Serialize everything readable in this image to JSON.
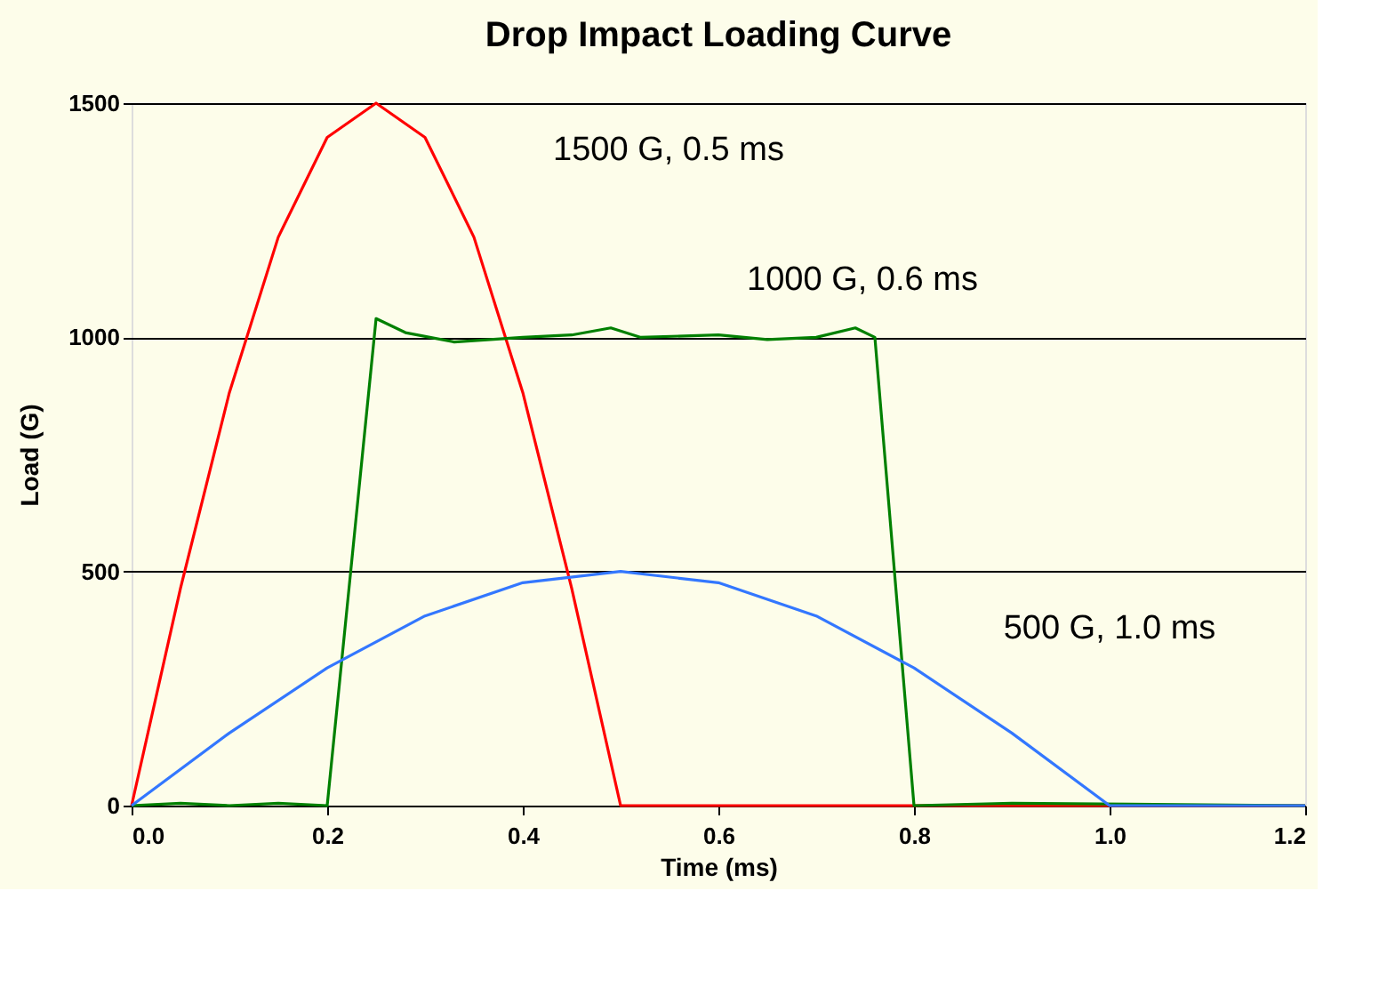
{
  "chart_data": {
    "type": "line",
    "title": "Drop Impact Loading Curve",
    "xlabel": "Time (ms)",
    "ylabel": "Load (G)",
    "xlim": [
      0,
      1.2
    ],
    "ylim": [
      0,
      1500
    ],
    "xticks": [
      {
        "value": 0,
        "label": "0.0"
      },
      {
        "value": 0.2,
        "label": "0.2"
      },
      {
        "value": 0.4,
        "label": "0.4"
      },
      {
        "value": 0.6,
        "label": "0.6"
      },
      {
        "value": 0.8,
        "label": "0.8"
      },
      {
        "value": 1.0,
        "label": "1.0"
      },
      {
        "value": 1.2,
        "label": "1.2"
      }
    ],
    "yticks": [
      0,
      500,
      1000,
      1500
    ],
    "grid": "y",
    "marker": "none",
    "line_style": "solid",
    "series": [
      {
        "color": "#ff0000",
        "x": [
          0,
          0.05,
          0.1,
          0.15,
          0.2,
          0.25,
          0.3,
          0.35,
          0.4,
          0.45,
          0.5,
          1.2
        ],
        "values": [
          0,
          464,
          882,
          1214,
          1427,
          1500,
          1427,
          1214,
          882,
          464,
          0,
          0
        ]
      },
      {
        "color": "#008000",
        "x": [
          0,
          0.05,
          0.1,
          0.15,
          0.2,
          0.25,
          0.28,
          0.33,
          0.4,
          0.45,
          0.49,
          0.52,
          0.6,
          0.65,
          0.7,
          0.74,
          0.76,
          0.8,
          0.9,
          1.2
        ],
        "values": [
          0,
          5,
          0,
          5,
          0,
          1040,
          1010,
          990,
          1000,
          1005,
          1020,
          1000,
          1005,
          995,
          1000,
          1020,
          1000,
          0,
          5,
          0
        ]
      },
      {
        "color": "#3377ff",
        "x": [
          0,
          0.1,
          0.2,
          0.3,
          0.4,
          0.5,
          0.6,
          0.7,
          0.8,
          0.9,
          1.0,
          1.2
        ],
        "values": [
          0,
          155,
          294,
          405,
          476,
          500,
          476,
          405,
          294,
          155,
          0,
          0
        ]
      }
    ],
    "annotations": [
      "1500 G, 0.5 ms",
      "1000 G, 0.6 ms",
      "500 G, 1.0 ms"
    ]
  }
}
